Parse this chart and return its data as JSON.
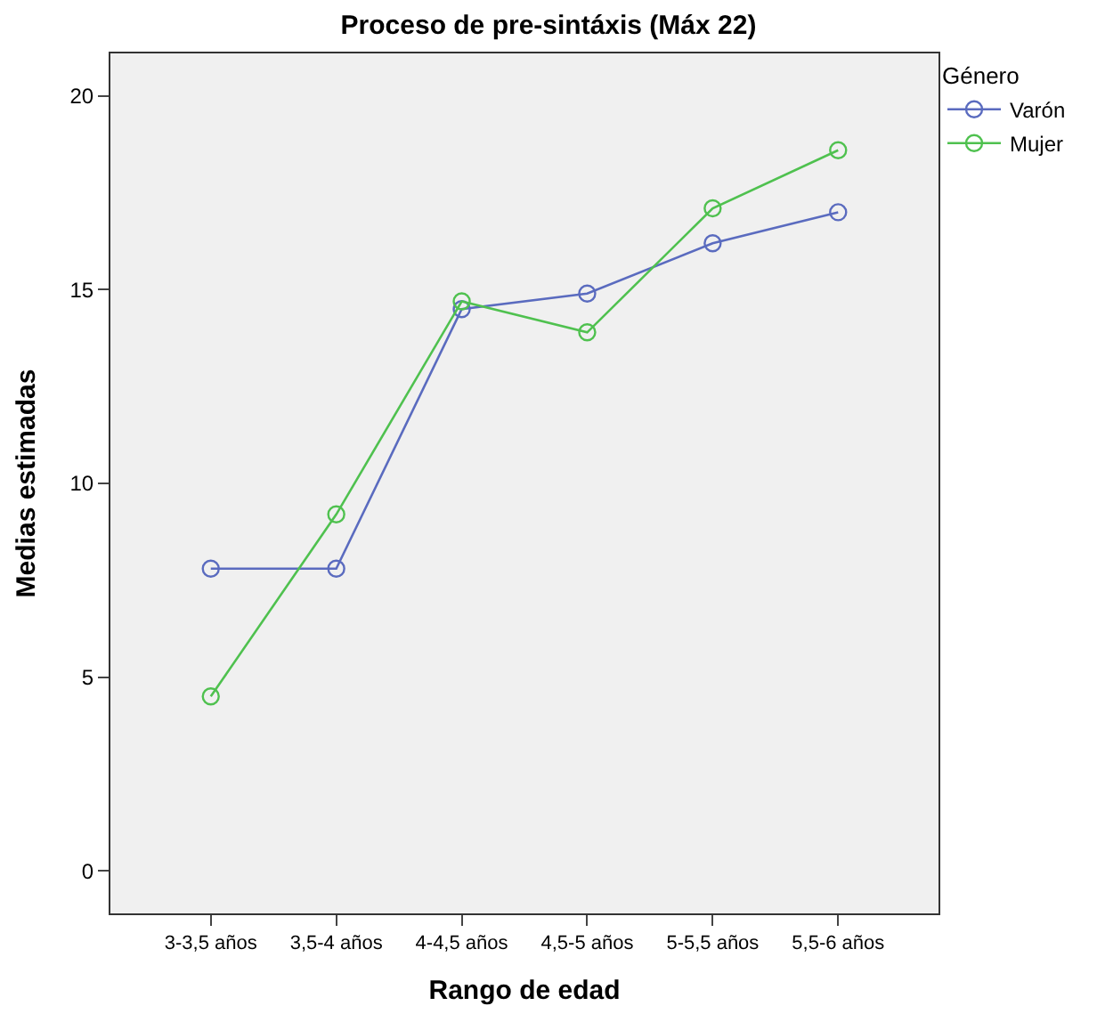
{
  "chart_data": {
    "type": "line",
    "title": "Proceso de pre-sintáxis (Máx 22)",
    "xlabel": "Rango de edad",
    "ylabel": "Medias estimadas",
    "legend_title": "Género",
    "categories": [
      "3-3,5 años",
      "3,5-4 años",
      "4-4,5 años",
      "4,5-5 años",
      "5-5,5 años",
      "5,5-6 años"
    ],
    "series": [
      {
        "name": "Varón",
        "color": "#5a6bbf",
        "values": [
          7.8,
          7.8,
          14.5,
          14.9,
          16.2,
          17.0
        ]
      },
      {
        "name": "Mujer",
        "color": "#4fc14f",
        "values": [
          4.5,
          9.2,
          14.7,
          13.9,
          17.1,
          18.6
        ]
      }
    ],
    "ylim": [
      -1.1,
      21.1
    ],
    "yticks": [
      0,
      5,
      10,
      15,
      20
    ],
    "grid": false,
    "legend": "top right",
    "marker": "circle",
    "line_style": "solid"
  }
}
